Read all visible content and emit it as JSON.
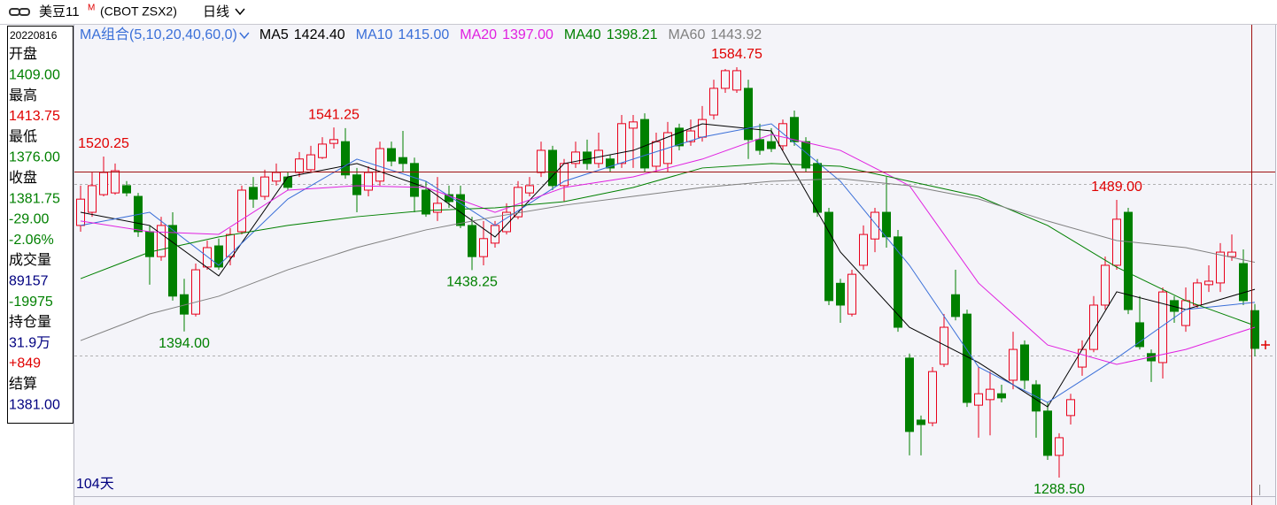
{
  "header": {
    "title": "美豆11",
    "superscript": "M",
    "code": "(CBOT ZSX2)",
    "period": "日线"
  },
  "info_panel": {
    "date": "20220816",
    "items": [
      {
        "text": "开盘",
        "color": "#000000"
      },
      {
        "text": "1409.00",
        "color": "#008000"
      },
      {
        "text": "最高",
        "color": "#000000"
      },
      {
        "text": "1413.75",
        "color": "#e00000"
      },
      {
        "text": "最低",
        "color": "#000000"
      },
      {
        "text": "1376.00",
        "color": "#008000"
      },
      {
        "text": "收盘",
        "color": "#000000"
      },
      {
        "text": "1381.75",
        "color": "#008000"
      },
      {
        "text": "-29.00",
        "color": "#008000"
      },
      {
        "text": "-2.06%",
        "color": "#008000"
      },
      {
        "text": "成交量",
        "color": "#000000"
      },
      {
        "text": "89157",
        "color": "#000080"
      },
      {
        "text": "-19975",
        "color": "#008000"
      },
      {
        "text": "持仓量",
        "color": "#000000"
      },
      {
        "text": "31.9万",
        "color": "#000080"
      },
      {
        "text": "+849",
        "color": "#e00000"
      },
      {
        "text": "结算",
        "color": "#000000"
      },
      {
        "text": "1381.00",
        "color": "#000080"
      }
    ]
  },
  "chart_data": {
    "type": "candlestick",
    "ma_group": "MA组合(5,10,20,40,60,0)",
    "footer": "104天",
    "ylim": [
      1275.7,
      1615.4
    ],
    "up_color": "#e8001c",
    "down_color": "#008000",
    "ohlc": [
      [
        1470.5,
        1499.25,
        1466,
        1489.5
      ],
      [
        1480,
        1508.75,
        1476.75,
        1499.25
      ],
      [
        1492.75,
        1520.25,
        1491.5,
        1508.75
      ],
      [
        1494,
        1515.25,
        1492.75,
        1510
      ],
      [
        1499.25,
        1502.5,
        1491.5,
        1494
      ],
      [
        1491.5,
        1494,
        1462.25,
        1466
      ],
      [
        1466,
        1470.5,
        1427.75,
        1448
      ],
      [
        1448,
        1476.75,
        1445,
        1470.5
      ],
      [
        1470.5,
        1480,
        1416.25,
        1419.5
      ],
      [
        1420.5,
        1432,
        1394,
        1406.5
      ],
      [
        1406.5,
        1443,
        1404.75,
        1438.5
      ],
      [
        1440.5,
        1459.5,
        1438.5,
        1454.5
      ],
      [
        1455.75,
        1461,
        1438.5,
        1440.5
      ],
      [
        1448,
        1468.5,
        1441.75,
        1464
      ],
      [
        1466,
        1499.25,
        1464,
        1496
      ],
      [
        1498,
        1505.5,
        1483.25,
        1489.5
      ],
      [
        1491.5,
        1510.75,
        1489,
        1505.5
      ],
      [
        1502.5,
        1515.25,
        1499.25,
        1508.75
      ],
      [
        1505.5,
        1508.75,
        1496,
        1498
      ],
      [
        1508.75,
        1523.5,
        1505.5,
        1518.5
      ],
      [
        1510.75,
        1528,
        1508.75,
        1521.5
      ],
      [
        1519.5,
        1534.25,
        1518.5,
        1529.25
      ],
      [
        1529.75,
        1541.25,
        1526,
        1532.5
      ],
      [
        1531,
        1540.75,
        1504.25,
        1507
      ],
      [
        1507,
        1512,
        1480,
        1492.75
      ],
      [
        1496,
        1513.25,
        1491.5,
        1508.75
      ],
      [
        1502.5,
        1531,
        1499.25,
        1526
      ],
      [
        1526,
        1531,
        1513.25,
        1517
      ],
      [
        1519.5,
        1538.75,
        1508.75,
        1515.25
      ],
      [
        1515.25,
        1519.5,
        1480,
        1491.5
      ],
      [
        1496,
        1502.5,
        1476.75,
        1478.75
      ],
      [
        1480,
        1505.5,
        1473.75,
        1486.5
      ],
      [
        1492.75,
        1499.25,
        1483.25,
        1487.75
      ],
      [
        1492.75,
        1499.25,
        1468.5,
        1470.5
      ],
      [
        1470.5,
        1476.75,
        1438.25,
        1448
      ],
      [
        1448,
        1473.75,
        1441.75,
        1461
      ],
      [
        1457.75,
        1473.75,
        1454.5,
        1470.5
      ],
      [
        1466,
        1486.5,
        1464,
        1480
      ],
      [
        1476.75,
        1502.5,
        1475,
        1498
      ],
      [
        1494,
        1505.5,
        1491.5,
        1499.25
      ],
      [
        1508.75,
        1531,
        1505.5,
        1524.75
      ],
      [
        1524.75,
        1528,
        1496,
        1499.25
      ],
      [
        1499.25,
        1518.5,
        1487.75,
        1515.25
      ],
      [
        1515.25,
        1531,
        1512,
        1523.5
      ],
      [
        1523.5,
        1532.5,
        1510.75,
        1515.25
      ],
      [
        1515.25,
        1537.5,
        1512,
        1524.75
      ],
      [
        1518.5,
        1521.5,
        1508.75,
        1512
      ],
      [
        1515.25,
        1550.25,
        1512,
        1544
      ],
      [
        1540.75,
        1550.25,
        1512,
        1545.25
      ],
      [
        1547,
        1551.5,
        1508.75,
        1512
      ],
      [
        1513.25,
        1537.5,
        1508.75,
        1531
      ],
      [
        1515.25,
        1545.25,
        1508.75,
        1537.5
      ],
      [
        1540.75,
        1544,
        1524.75,
        1528
      ],
      [
        1531,
        1547,
        1528,
        1538.75
      ],
      [
        1534.25,
        1556.75,
        1531,
        1547
      ],
      [
        1550.25,
        1575.75,
        1547,
        1569.5
      ],
      [
        1569.5,
        1583.5,
        1566.25,
        1582.25
      ],
      [
        1568.25,
        1584.75,
        1566.25,
        1582.25
      ],
      [
        1569.5,
        1575.75,
        1518.5,
        1532.5
      ],
      [
        1532.5,
        1544,
        1521.5,
        1524.75
      ],
      [
        1531,
        1540.75,
        1523.5,
        1526
      ],
      [
        1528,
        1547,
        1524.75,
        1544
      ],
      [
        1548.5,
        1553.5,
        1528,
        1531
      ],
      [
        1531,
        1534.25,
        1508.75,
        1512
      ],
      [
        1515.25,
        1518.5,
        1476.75,
        1480
      ],
      [
        1480,
        1483.25,
        1413,
        1416.25
      ],
      [
        1428.75,
        1432,
        1400.25,
        1413
      ],
      [
        1406.5,
        1438.5,
        1404.75,
        1435.25
      ],
      [
        1441.75,
        1470.5,
        1438.5,
        1464
      ],
      [
        1460.75,
        1483.25,
        1451.25,
        1480
      ],
      [
        1480,
        1505.5,
        1454.5,
        1462.25
      ],
      [
        1462.25,
        1467.25,
        1393.75,
        1397
      ],
      [
        1374.75,
        1378,
        1304.5,
        1321.75
      ],
      [
        1330,
        1333.25,
        1304.5,
        1326.75
      ],
      [
        1328,
        1368.25,
        1325.5,
        1365
      ],
      [
        1370.25,
        1406.5,
        1368.25,
        1397
      ],
      [
        1420.5,
        1438.5,
        1402,
        1404.75
      ],
      [
        1406.5,
        1409.75,
        1339.5,
        1342.75
      ],
      [
        1340.75,
        1368.25,
        1317.25,
        1349
      ],
      [
        1344.75,
        1365,
        1319,
        1352.25
      ],
      [
        1349,
        1355.5,
        1342.75,
        1346
      ],
      [
        1358.75,
        1393.75,
        1352.25,
        1381
      ],
      [
        1384.25,
        1387.5,
        1352.25,
        1358.75
      ],
      [
        1355.5,
        1358.75,
        1317.25,
        1336.5
      ],
      [
        1336.5,
        1342.75,
        1301.25,
        1304.5
      ],
      [
        1304.5,
        1320.5,
        1288.5,
        1317.25
      ],
      [
        1333.25,
        1349,
        1326.75,
        1344.75
      ],
      [
        1368.25,
        1387.5,
        1362,
        1381
      ],
      [
        1381,
        1419.5,
        1379,
        1413
      ],
      [
        1413,
        1448,
        1409.75,
        1441.75
      ],
      [
        1441.75,
        1489,
        1438.5,
        1475
      ],
      [
        1480,
        1483.25,
        1406.5,
        1409.75
      ],
      [
        1400.25,
        1419.5,
        1381,
        1383
      ],
      [
        1378,
        1381,
        1357.5,
        1372.75
      ],
      [
        1371.5,
        1425.75,
        1360,
        1422.5
      ],
      [
        1416.25,
        1419.5,
        1400.25,
        1408.5
      ],
      [
        1398.25,
        1425.75,
        1393.75,
        1416.25
      ],
      [
        1413,
        1432,
        1411,
        1429
      ],
      [
        1427.75,
        1441.75,
        1422.5,
        1430.25
      ],
      [
        1429,
        1457.75,
        1422.5,
        1451.25
      ],
      [
        1448,
        1464,
        1445,
        1451.25
      ],
      [
        1443,
        1453.25,
        1413,
        1416.25
      ],
      [
        1409,
        1413.75,
        1376,
        1381.75
      ]
    ],
    "series": [
      {
        "name": "MA5",
        "legend_value": "1424.40",
        "color": "#000000",
        "x": [
          0,
          6,
          12,
          18,
          24,
          30,
          36,
          42,
          48,
          54,
          60,
          66,
          72,
          78,
          84,
          90,
          96,
          102
        ],
        "values": [
          1480.0,
          1470.5,
          1434.1,
          1505.6,
          1515.2,
          1497.9,
          1462.2,
          1515.2,
          1524.7,
          1543.9,
          1538.8,
          1451.3,
          1397.0,
          1371.5,
          1339.5,
          1422.6,
          1409.8,
          1424.4
        ]
      },
      {
        "name": "MA10",
        "legend_value": "1415.00",
        "color": "#3a6fd8",
        "x": [
          0,
          6,
          12,
          18,
          24,
          30,
          36,
          42,
          48,
          54,
          60,
          66,
          72,
          78,
          84,
          90,
          96,
          102
        ],
        "values": [
          1470.5,
          1480.0,
          1441.7,
          1489.6,
          1518.4,
          1502.4,
          1470.5,
          1502.4,
          1518.4,
          1534.3,
          1543.9,
          1502.4,
          1441.7,
          1368.3,
          1342.7,
          1374.7,
          1409.8,
          1415
        ]
      },
      {
        "name": "MA20",
        "legend_value": "1397.00",
        "color": "#e020e0",
        "x": [
          0,
          6,
          12,
          18,
          24,
          30,
          36,
          42,
          48,
          54,
          60,
          66,
          72,
          78,
          84,
          90,
          96,
          102
        ],
        "values": [
          1473.7,
          1466.0,
          1464.1,
          1496.0,
          1499.2,
          1497.9,
          1480.0,
          1497.9,
          1505.6,
          1518.4,
          1536.2,
          1524.7,
          1499.2,
          1428.9,
          1384.2,
          1370.2,
          1381.0,
          1397
        ]
      },
      {
        "name": "MA40",
        "legend_value": "1398.21",
        "color": "#008000",
        "x": [
          0,
          6,
          12,
          18,
          24,
          30,
          36,
          42,
          48,
          54,
          60,
          66,
          72,
          78,
          84,
          90,
          96,
          102
        ],
        "values": [
          1432.1,
          1451.3,
          1462.2,
          1470.5,
          1476.8,
          1481.3,
          1483.2,
          1487.7,
          1497.9,
          1512.0,
          1515.2,
          1513.2,
          1502.4,
          1491.5,
          1470.5,
          1440.4,
          1416.2,
          1398.21
        ]
      },
      {
        "name": "MA60",
        "legend_value": "1443.92",
        "color": "#808080",
        "x": [
          0,
          6,
          12,
          18,
          24,
          30,
          36,
          42,
          48,
          54,
          60,
          66,
          72,
          78,
          84,
          90,
          96,
          102
        ],
        "values": [
          1387.4,
          1406.6,
          1419.4,
          1438.5,
          1454.5,
          1467.3,
          1476.8,
          1485.1,
          1491.5,
          1497.9,
          1502.4,
          1504.3,
          1499.2,
          1489.6,
          1473.7,
          1459.6,
          1454.5,
          1443.92
        ]
      }
    ],
    "annotations": [
      {
        "value": 1520.25,
        "label": "1520.25"
      },
      {
        "value": 1541.25,
        "label": "1541.25"
      },
      {
        "value": 1394,
        "label": "1394.00"
      },
      {
        "value": 1438.25,
        "label": "1438.25"
      },
      {
        "value": 1584.75,
        "label": "1584.75"
      },
      {
        "value": 1489,
        "label": "1489.00"
      },
      {
        "value": 1288.5,
        "label": "1288.50"
      }
    ]
  }
}
